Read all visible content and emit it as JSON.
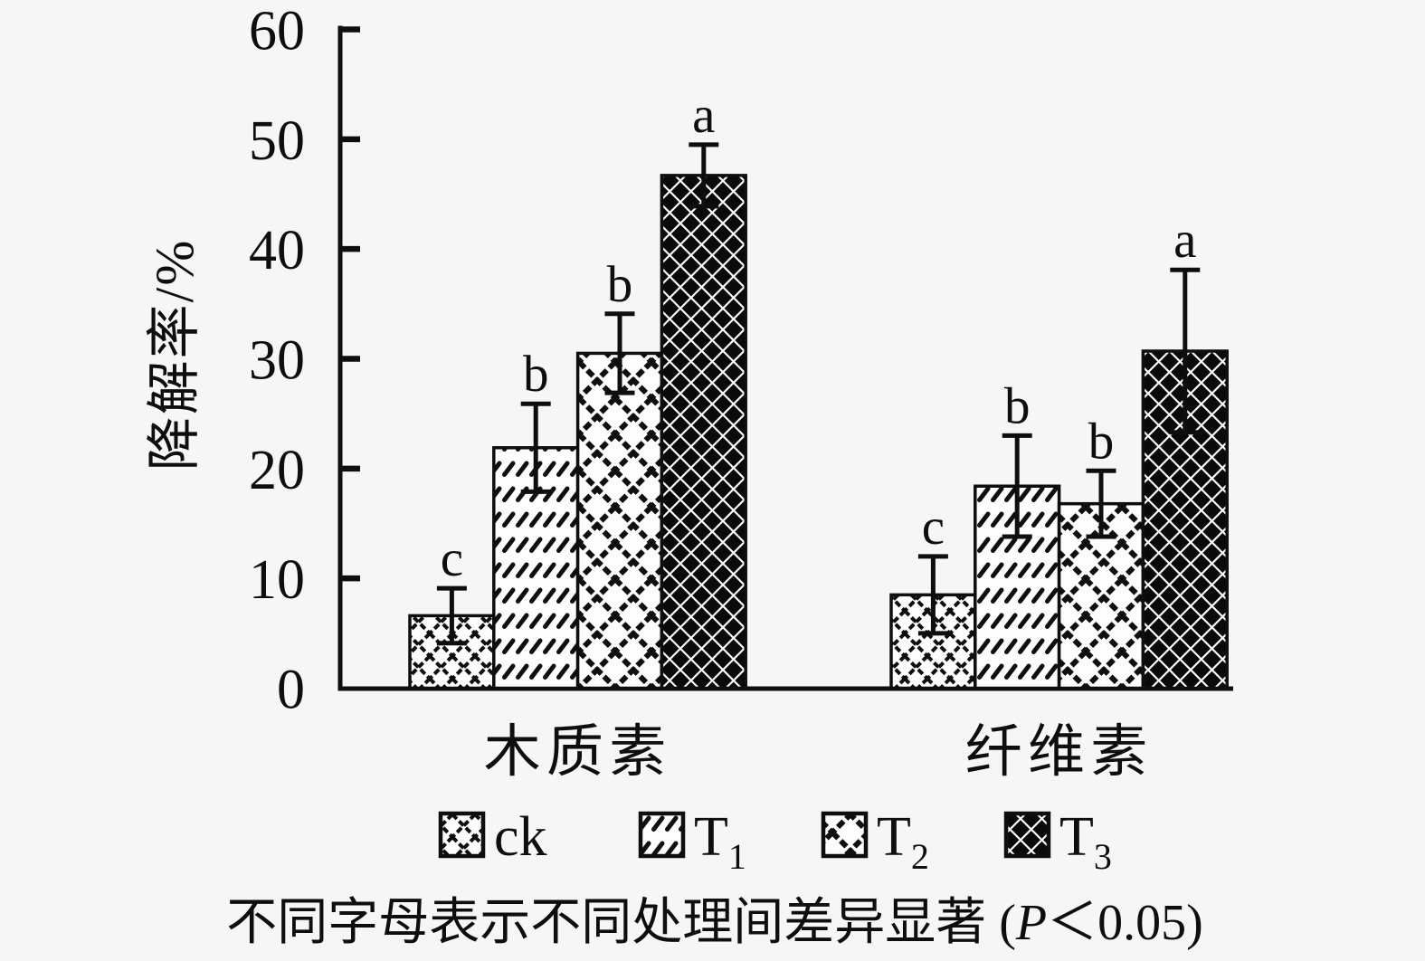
{
  "chart_data": {
    "type": "bar",
    "title": "",
    "xlabel": "",
    "ylabel": "降解率/%",
    "ylim": [
      0,
      60
    ],
    "yticks": [
      0,
      10,
      20,
      30,
      40,
      50,
      60
    ],
    "grid": false,
    "legend_position": "bottom",
    "categories": [
      "木质素",
      "纤维素"
    ],
    "series": [
      {
        "name": "ck",
        "sub": "",
        "pattern": "small-diamond-crosshatch",
        "values": [
          6.6,
          8.5
        ],
        "errors": [
          2.5,
          3.5
        ],
        "sig_letters": [
          "c",
          "c"
        ]
      },
      {
        "name": "T",
        "sub": "1",
        "pattern": "diagonal-dash-rows",
        "values": [
          21.9,
          18.4
        ],
        "errors": [
          4.0,
          4.6
        ],
        "sig_letters": [
          "b",
          "b"
        ]
      },
      {
        "name": "T",
        "sub": "2",
        "pattern": "large-diamond-crosshatch",
        "values": [
          30.5,
          16.8
        ],
        "errors": [
          3.6,
          3.0
        ],
        "sig_letters": [
          "b",
          "b"
        ]
      },
      {
        "name": "T",
        "sub": "3",
        "pattern": "black-diamonds",
        "values": [
          46.7,
          30.7
        ],
        "errors": [
          2.8,
          7.4
        ],
        "sig_letters": [
          "a",
          "a"
        ]
      }
    ]
  },
  "caption": {
    "pre": "不同字母表示不同处理间差异显著 (",
    "p": "P",
    "post": "＜0.05)"
  },
  "colors": {
    "ink": "#0e0e0e",
    "background": "#f6f6f6",
    "bar_fill": "#fdfdfd"
  }
}
